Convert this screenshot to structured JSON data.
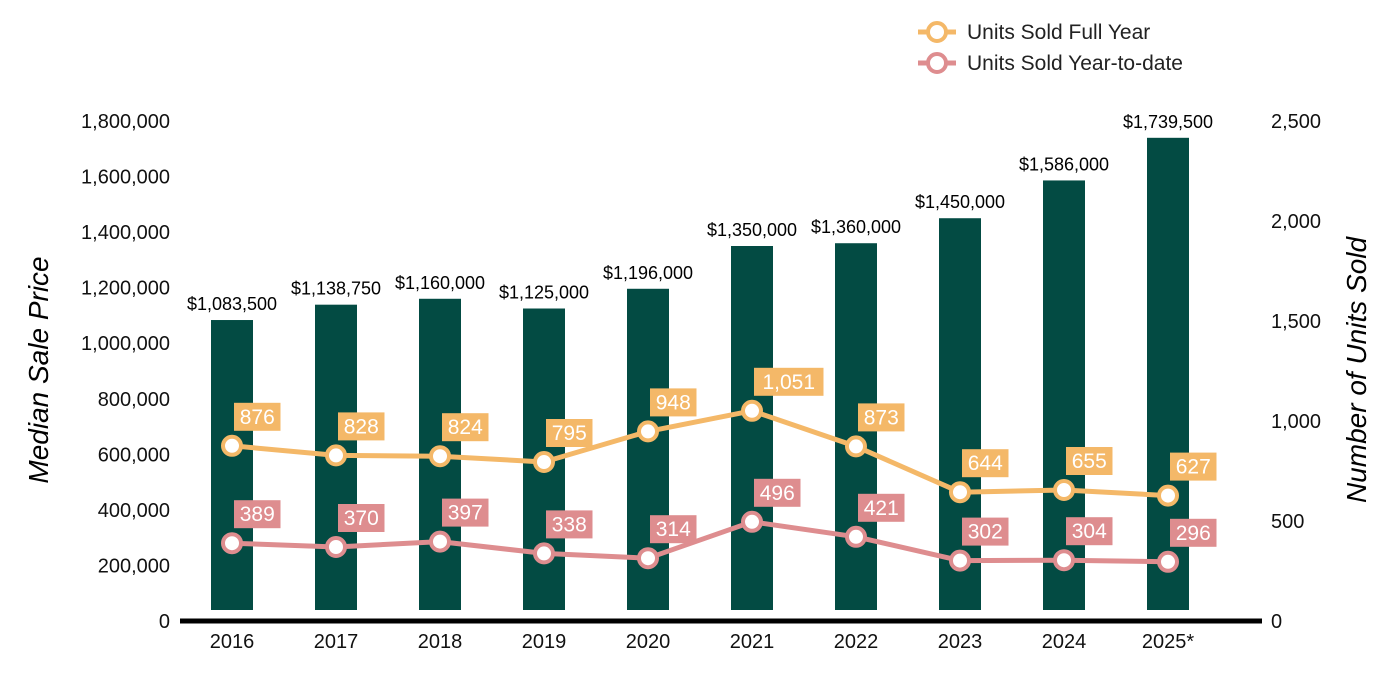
{
  "chart_data": {
    "type": "bar",
    "categories": [
      "2016",
      "2017",
      "2018",
      "2019",
      "2020",
      "2021",
      "2022",
      "2023",
      "2024",
      "2025*"
    ],
    "bar_series": {
      "name": "Median Sale Price",
      "values": [
        1083500,
        1138750,
        1160000,
        1125000,
        1196000,
        1350000,
        1360000,
        1450000,
        1586000,
        1739500
      ],
      "labels": [
        "$1,083,500",
        "$1,138,750",
        "$1,160,000",
        "$1,125,000",
        "$1,196,000",
        "$1,350,000",
        "$1,360,000",
        "$1,450,000",
        "$1,586,000",
        "$1,739,500"
      ],
      "color": "#034b43"
    },
    "line_series": [
      {
        "name": "Units Sold Full Year",
        "values": [
          876,
          828,
          824,
          795,
          948,
          1051,
          873,
          644,
          655,
          627
        ],
        "labels": [
          "876",
          "828",
          "824",
          "795",
          "948",
          "1,051",
          "873",
          "644",
          "655",
          "627"
        ],
        "color": "#f4b868"
      },
      {
        "name": "Units Sold Year-to-date",
        "values": [
          389,
          370,
          397,
          338,
          314,
          496,
          421,
          302,
          304,
          296
        ],
        "labels": [
          "389",
          "370",
          "397",
          "338",
          "314",
          "496",
          "421",
          "302",
          "304",
          "296"
        ],
        "color": "#de8d8f"
      }
    ],
    "y_left": {
      "label": "Median Sale Price",
      "range": [
        0,
        1800000
      ],
      "ticks": [
        0,
        200000,
        400000,
        600000,
        800000,
        1000000,
        1200000,
        1400000,
        1600000,
        1800000
      ],
      "tick_labels": [
        "0",
        "200,000",
        "400,000",
        "600,000",
        "800,000",
        "1,000,000",
        "1,200,000",
        "1,400,000",
        "1,600,000",
        "1,800,000"
      ]
    },
    "y_right": {
      "label": "Number of Units Sold",
      "range": [
        0,
        2500
      ],
      "ticks": [
        0,
        500,
        1000,
        1500,
        2000,
        2500
      ],
      "tick_labels": [
        "0",
        "500",
        "1,000",
        "1,500",
        "2,000",
        "2,500"
      ]
    },
    "grid": false,
    "legend": "top-right"
  }
}
